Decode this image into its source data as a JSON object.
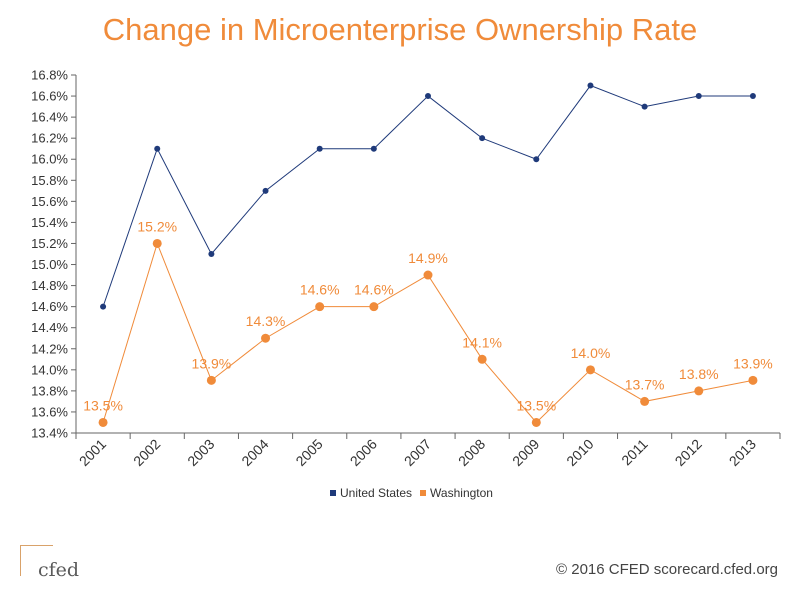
{
  "colors": {
    "title": "#f08b3a",
    "us": "#1f3a7a",
    "wa": "#f08b3a",
    "axis": "#666666",
    "text": "#333333"
  },
  "footer": {
    "logo_text": "cfed",
    "copyright": "© 2016 CFED scorecard.cfed.org"
  },
  "chart_data": {
    "type": "line",
    "title": "Change in Microenterprise Ownership Rate",
    "xlabel": "",
    "ylabel": "",
    "categories": [
      "2001",
      "2002",
      "2003",
      "2004",
      "2005",
      "2006",
      "2007",
      "2008",
      "2009",
      "2010",
      "2011",
      "2012",
      "2013"
    ],
    "ylim": [
      13.4,
      16.8
    ],
    "yticks": [
      "13.4%",
      "13.6%",
      "13.8%",
      "14.0%",
      "14.2%",
      "14.4%",
      "14.6%",
      "14.8%",
      "15.0%",
      "15.2%",
      "15.4%",
      "15.6%",
      "15.8%",
      "16.0%",
      "16.2%",
      "16.4%",
      "16.6%",
      "16.8%"
    ],
    "legend_position": "bottom-center",
    "grid": false,
    "series": [
      {
        "name": "United States",
        "color": "#1f3a7a",
        "values": [
          14.6,
          16.1,
          15.1,
          15.7,
          16.1,
          16.1,
          16.6,
          16.2,
          16.0,
          16.7,
          16.5,
          16.6,
          16.6
        ],
        "show_labels": false
      },
      {
        "name": "Washington",
        "color": "#f08b3a",
        "values": [
          13.5,
          15.2,
          13.9,
          14.3,
          14.6,
          14.6,
          14.9,
          14.1,
          13.5,
          14.0,
          13.7,
          13.8,
          13.9
        ],
        "labels": [
          "13.5%",
          "15.2%",
          "13.9%",
          "14.3%",
          "14.6%",
          "14.6%",
          "14.9%",
          "14.1%",
          "13.5%",
          "14.0%",
          "13.7%",
          "13.8%",
          "13.9%"
        ],
        "show_labels": true
      }
    ]
  }
}
